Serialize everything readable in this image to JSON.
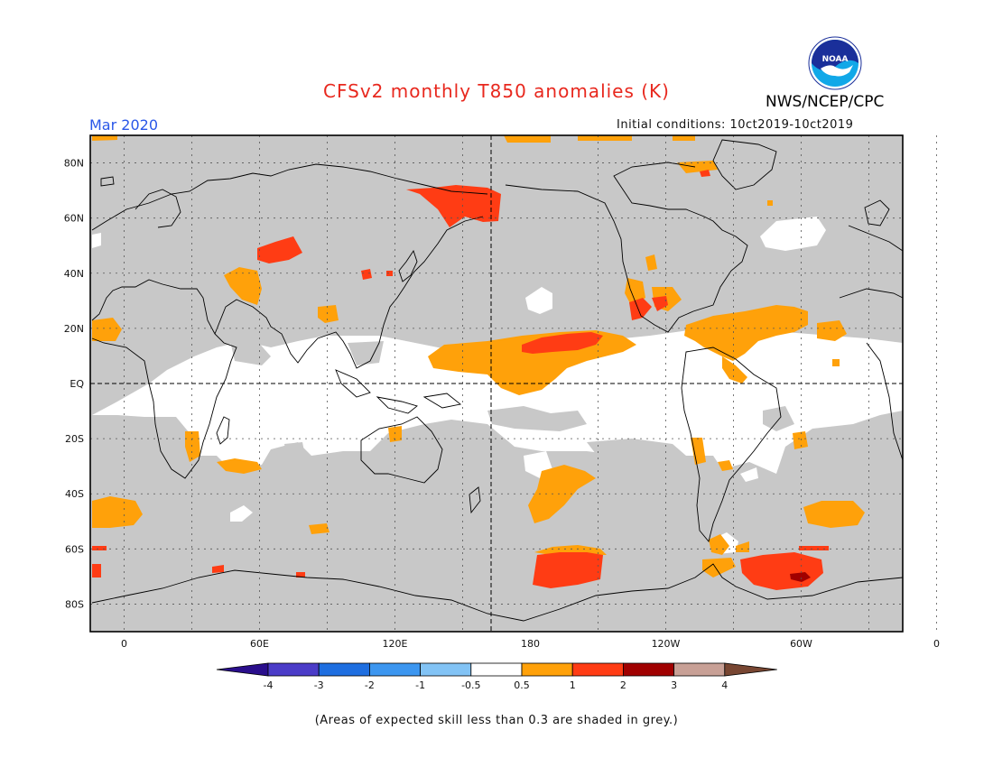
{
  "header": {
    "title": "CFSv2 monthly T850 anomalies (K)",
    "agency": "NWS/NCEP/CPC",
    "logo_text": "NOAA",
    "valid_month": "Mar 2020",
    "initial_conditions": "Initial conditions: 10ct2019-10ct2019"
  },
  "map": {
    "projection": "equirectangular",
    "lon_labels": [
      "0",
      "60E",
      "120E",
      "180",
      "120W",
      "60W",
      "0"
    ],
    "lat_labels": [
      "80N",
      "60N",
      "40N",
      "20N",
      "EQ",
      "20S",
      "40S",
      "60S",
      "80S"
    ],
    "grid": "dotted",
    "reference_lines": [
      "Equator (dashed)",
      "180 meridian (dashed)"
    ],
    "low_skill_shading": "grey"
  },
  "legend": {
    "tick_labels": [
      "-4",
      "-3",
      "-2",
      "-1",
      "-0.5",
      "0.5",
      "1",
      "2",
      "3",
      "4"
    ],
    "colors": [
      "#2a0e8c",
      "#4b3cc8",
      "#1e6ee0",
      "#3c96f0",
      "#82c3f5",
      "#ffffff",
      "#ffa10a",
      "#ff3c14",
      "#a00000",
      "#c8a096",
      "#784632"
    ]
  },
  "footnote": "(Areas of expected skill less than 0.3 are shaded in grey.)"
}
